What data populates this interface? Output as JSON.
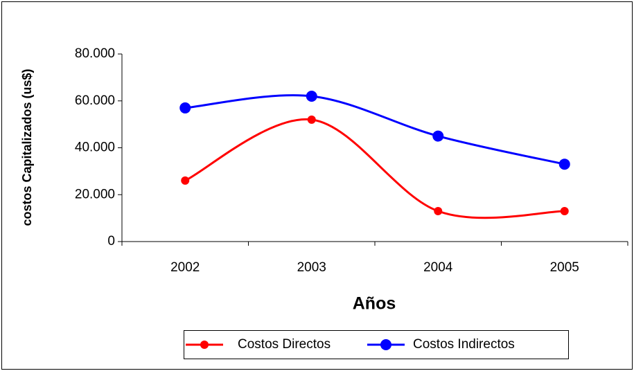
{
  "chart_data": {
    "type": "line",
    "x_label": "Años",
    "y_label": "costos Capitalizados (us$)",
    "categories": [
      "2002",
      "2003",
      "2004",
      "2005"
    ],
    "series": [
      {
        "name": "Costos Directos",
        "color": "#ff0000",
        "values": [
          26000,
          52000,
          13000,
          13000
        ]
      },
      {
        "name": "Costos Indirectos",
        "color": "#0000ff",
        "values": [
          57000,
          62000,
          45000,
          33000
        ]
      }
    ],
    "ylim": [
      0,
      80000
    ],
    "yticks": [
      0,
      {
        "value": 20000,
        "label": "20.000"
      },
      {
        "value": 40000,
        "label": "40.000"
      },
      {
        "value": 60000,
        "label": "60.000"
      },
      {
        "value": 80000,
        "label": "80.000"
      }
    ],
    "smooth": true,
    "legend": "bottom"
  }
}
